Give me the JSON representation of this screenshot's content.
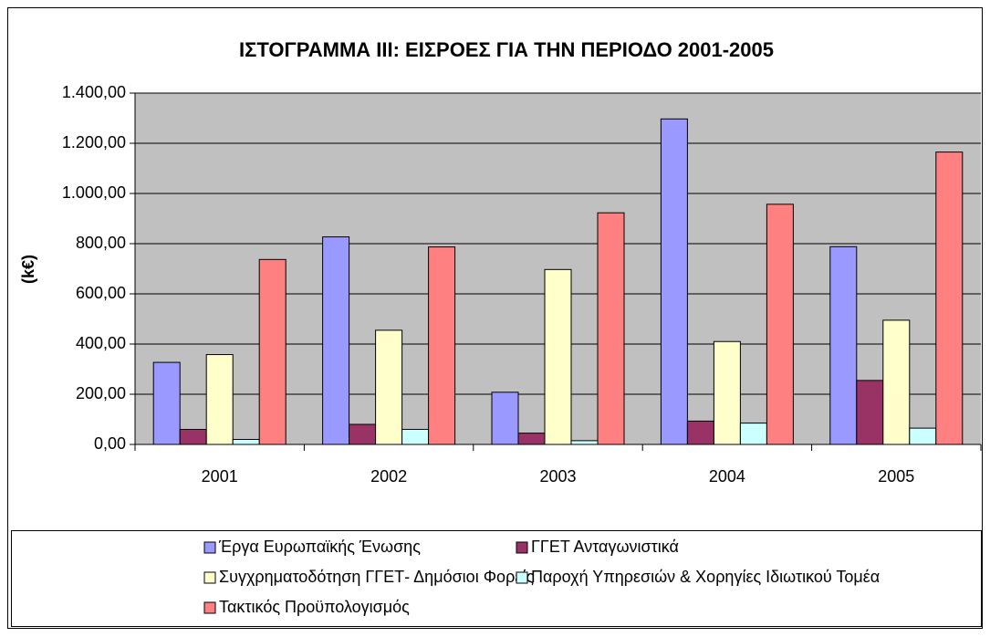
{
  "chart_data": {
    "type": "bar",
    "title": "ΙΣΤΟΓΡΑΜΜΑ ΙΙΙ: ΕΙΣΡΟΕΣ ΓΙΑ ΤΗΝ ΠΕΡΙΟΔΟ 2001-2005",
    "y_label": "(k€)",
    "categories": [
      "2001",
      "2002",
      "2003",
      "2004",
      "2005"
    ],
    "series": [
      {
        "name": "Έργα Ευρωπαϊκής Ένωσης",
        "color": "#9999ff",
        "values": [
          327,
          827,
          208,
          1297,
          788
        ]
      },
      {
        "name": "ΓΓΕΤ Ανταγωνιστικά",
        "color": "#993366",
        "values": [
          60,
          80,
          45,
          93,
          255
        ]
      },
      {
        "name": "Συγχρηματοδότηση ΓΓΕΤ- Δημόσιοι Φορείς",
        "color": "#ffffcc",
        "values": [
          358,
          455,
          697,
          410,
          495
        ]
      },
      {
        "name": "Παροχή Υπηρεσιών & Χορηγίες Ιδιωτικού Τομέα",
        "color": "#ccffff",
        "values": [
          20,
          60,
          15,
          85,
          65
        ]
      },
      {
        "name": "Τακτικός Προϋπολογισμός",
        "color": "#ff8080",
        "values": [
          737,
          787,
          923,
          957,
          1165
        ]
      }
    ],
    "ylim": [
      0,
      1400
    ],
    "yticks": [
      {
        "value": 0,
        "label": "0,00"
      },
      {
        "value": 200,
        "label": "200,00"
      },
      {
        "value": 400,
        "label": "400,00"
      },
      {
        "value": 600,
        "label": "600,00"
      },
      {
        "value": 800,
        "label": "800,00"
      },
      {
        "value": 1000,
        "label": "1.000,00"
      },
      {
        "value": 1200,
        "label": "1.200,00"
      },
      {
        "value": 1400,
        "label": "1.400,00"
      }
    ],
    "grid": true,
    "plot_background": "#c0c0c0"
  }
}
